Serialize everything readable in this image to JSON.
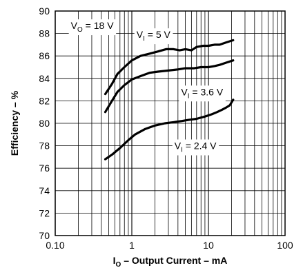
{
  "chart_data": {
    "type": "line",
    "xscale": "log",
    "xlim": [
      0.1,
      100
    ],
    "ylim": [
      70,
      90
    ],
    "grid": true,
    "x_ticks": [
      "0.10",
      "1",
      "10",
      "100"
    ],
    "y_ticks": [
      "70",
      "72",
      "74",
      "76",
      "78",
      "80",
      "82",
      "84",
      "86",
      "88",
      "90"
    ],
    "xlabel": {
      "main": "I",
      "sub": "O",
      "rest": " – Output Current – mA"
    },
    "ylabel": "Efficiency – %",
    "annotations": [
      {
        "main": "V",
        "sub": "O",
        "rest": " = 18 V",
        "x": 0.16,
        "y": 88.4
      },
      {
        "main": "V",
        "sub": "I",
        "rest": " = 5 V",
        "x": 1.15,
        "y": 87.6
      },
      {
        "main": "V",
        "sub": "I",
        "rest": " = 3.6 V",
        "x": 4.4,
        "y": 82.5
      },
      {
        "main": "V",
        "sub": "I",
        "rest": " = 2.4 V",
        "x": 3.6,
        "y": 77.7
      }
    ],
    "series": [
      {
        "label": "VI = 5 V",
        "color": "#000000",
        "points": [
          [
            0.45,
            82.6
          ],
          [
            0.55,
            83.5
          ],
          [
            0.65,
            84.4
          ],
          [
            0.8,
            85.0
          ],
          [
            1.0,
            85.6
          ],
          [
            1.3,
            86.0
          ],
          [
            1.7,
            86.2
          ],
          [
            2.2,
            86.4
          ],
          [
            2.8,
            86.6
          ],
          [
            3.5,
            86.6
          ],
          [
            4.2,
            86.5
          ],
          [
            5.0,
            86.6
          ],
          [
            6.0,
            86.5
          ],
          [
            7.0,
            86.8
          ],
          [
            8.5,
            86.9
          ],
          [
            10.0,
            86.9
          ],
          [
            12.0,
            87.0
          ],
          [
            14.0,
            87.0
          ],
          [
            17.0,
            87.2
          ],
          [
            21.0,
            87.4
          ]
        ]
      },
      {
        "label": "VI = 3.6 V",
        "color": "#000000",
        "points": [
          [
            0.45,
            81.0
          ],
          [
            0.55,
            82.0
          ],
          [
            0.65,
            82.8
          ],
          [
            0.8,
            83.4
          ],
          [
            1.0,
            83.9
          ],
          [
            1.3,
            84.2
          ],
          [
            1.7,
            84.5
          ],
          [
            2.2,
            84.6
          ],
          [
            3.0,
            84.7
          ],
          [
            4.0,
            84.8
          ],
          [
            5.0,
            84.9
          ],
          [
            6.5,
            84.9
          ],
          [
            8.0,
            85.0
          ],
          [
            10.0,
            85.0
          ],
          [
            12.0,
            85.1
          ],
          [
            14.0,
            85.2
          ],
          [
            17.0,
            85.4
          ],
          [
            21.0,
            85.6
          ]
        ]
      },
      {
        "label": "VI = 2.4 V",
        "color": "#000000",
        "points": [
          [
            0.45,
            76.8
          ],
          [
            0.55,
            77.2
          ],
          [
            0.7,
            77.8
          ],
          [
            0.9,
            78.5
          ],
          [
            1.1,
            79.0
          ],
          [
            1.5,
            79.5
          ],
          [
            2.0,
            79.8
          ],
          [
            2.7,
            80.0
          ],
          [
            3.5,
            80.1
          ],
          [
            4.5,
            80.2
          ],
          [
            5.5,
            80.3
          ],
          [
            7.0,
            80.4
          ],
          [
            9.0,
            80.6
          ],
          [
            11.0,
            80.8
          ],
          [
            13.0,
            81.0
          ],
          [
            15.0,
            81.2
          ],
          [
            17.0,
            81.4
          ],
          [
            19.0,
            81.6
          ],
          [
            21.0,
            82.1
          ]
        ]
      }
    ]
  }
}
